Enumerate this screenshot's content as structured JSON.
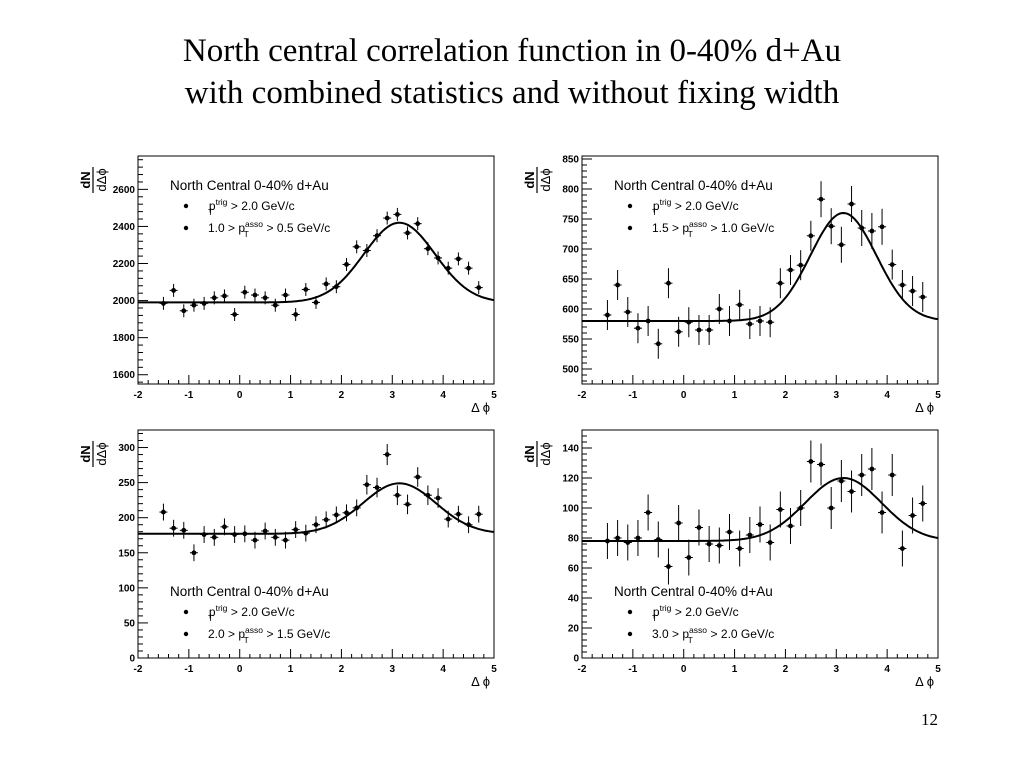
{
  "slide": {
    "title_line1": "North central correlation function in 0-40% d+Au",
    "title_line2": "with combined statistics and without fixing width",
    "page_number": "12"
  },
  "chart_data": [
    {
      "type": "scatter",
      "title": "North Central 0-40% d+Au",
      "legend": [
        "p_T^trig > 2.0 GeV/c",
        "1.0 > p_T^asso > 0.5 GeV/c"
      ],
      "legend_placement": "top-left",
      "xlabel": "Δ ϕ",
      "ylabel": "dN/dΔϕ",
      "xlim": [
        -2,
        5
      ],
      "ylim": [
        1550,
        2780
      ],
      "yticks": [
        1600,
        1800,
        2000,
        2200,
        2400,
        2600
      ],
      "xticks": [
        -2,
        -1,
        0,
        1,
        2,
        3,
        4,
        5
      ],
      "grid": false,
      "x": [
        -1.5,
        -1.3,
        -1.1,
        -0.9,
        -0.7,
        -0.5,
        -0.3,
        -0.1,
        0.1,
        0.3,
        0.5,
        0.7,
        0.9,
        1.1,
        1.3,
        1.5,
        1.7,
        1.9,
        2.1,
        2.3,
        2.5,
        2.7,
        2.9,
        3.1,
        3.3,
        3.5,
        3.7,
        3.9,
        4.1,
        4.3,
        4.5,
        4.7
      ],
      "y": [
        1985,
        2055,
        1945,
        1975,
        1985,
        2015,
        2025,
        1925,
        2045,
        2030,
        2015,
        1975,
        2030,
        1925,
        2060,
        1990,
        2090,
        2075,
        2195,
        2290,
        2270,
        2350,
        2445,
        2465,
        2365,
        2415,
        2280,
        2230,
        2175,
        2225,
        2175,
        2070
      ],
      "yerr": [
        35,
        35,
        35,
        35,
        35,
        35,
        35,
        35,
        35,
        35,
        35,
        35,
        35,
        35,
        35,
        35,
        35,
        35,
        35,
        35,
        35,
        35,
        35,
        35,
        35,
        35,
        35,
        35,
        35,
        35,
        35,
        35
      ],
      "fit": {
        "baseline": 1990,
        "amplitude": 430,
        "center": 3.14,
        "sigma": 0.7
      }
    },
    {
      "type": "scatter",
      "title": "North Central 0-40% d+Au",
      "legend": [
        "p_T^trig > 2.0 GeV/c",
        "1.5 > p_T^asso > 1.0 GeV/c"
      ],
      "legend_placement": "top-left",
      "xlabel": "Δ ϕ",
      "ylabel": "dN/dΔϕ",
      "xlim": [
        -2,
        5
      ],
      "ylim": [
        475,
        855
      ],
      "yticks": [
        500,
        550,
        600,
        650,
        700,
        750,
        800,
        850
      ],
      "xticks": [
        -2,
        -1,
        0,
        1,
        2,
        3,
        4,
        5
      ],
      "grid": false,
      "x": [
        -1.5,
        -1.3,
        -1.1,
        -0.9,
        -0.7,
        -0.5,
        -0.3,
        -0.1,
        0.1,
        0.3,
        0.5,
        0.7,
        0.9,
        1.1,
        1.3,
        1.5,
        1.7,
        1.9,
        2.1,
        2.3,
        2.5,
        2.7,
        2.9,
        3.1,
        3.3,
        3.5,
        3.7,
        3.9,
        4.1,
        4.3,
        4.5,
        4.7
      ],
      "y": [
        590,
        640,
        595,
        568,
        580,
        542,
        643,
        562,
        578,
        565,
        565,
        600,
        580,
        607,
        575,
        580,
        578,
        643,
        665,
        673,
        722,
        783,
        738,
        707,
        775,
        735,
        730,
        737,
        674,
        640,
        630,
        620
      ],
      "yerr": [
        25,
        25,
        25,
        25,
        25,
        25,
        25,
        25,
        25,
        25,
        25,
        25,
        25,
        25,
        25,
        25,
        25,
        25,
        25,
        25,
        25,
        30,
        30,
        30,
        30,
        30,
        30,
        30,
        25,
        25,
        25,
        25
      ],
      "fit": {
        "baseline": 580,
        "amplitude": 180,
        "center": 3.14,
        "sigma": 0.65
      }
    },
    {
      "type": "scatter",
      "title": "North Central 0-40% d+Au",
      "legend": [
        "p_T^trig > 2.0 GeV/c",
        "2.0 > p_T^asso > 1.5 GeV/c"
      ],
      "legend_placement": "bottom-left",
      "xlabel": "Δ ϕ",
      "ylabel": "dN/dΔϕ",
      "xlim": [
        -2,
        5
      ],
      "ylim": [
        0,
        325
      ],
      "yticks": [
        0,
        50,
        100,
        150,
        200,
        250,
        300
      ],
      "xticks": [
        -2,
        -1,
        0,
        1,
        2,
        3,
        4,
        5
      ],
      "grid": false,
      "x": [
        -1.5,
        -1.3,
        -1.1,
        -0.9,
        -0.7,
        -0.5,
        -0.3,
        -0.1,
        0.1,
        0.3,
        0.5,
        0.7,
        0.9,
        1.1,
        1.3,
        1.5,
        1.7,
        1.9,
        2.1,
        2.3,
        2.5,
        2.7,
        2.9,
        3.1,
        3.3,
        3.5,
        3.7,
        3.9,
        4.1,
        4.3,
        4.5,
        4.7
      ],
      "y": [
        208,
        185,
        182,
        150,
        176,
        172,
        187,
        176,
        177,
        168,
        181,
        172,
        168,
        183,
        178,
        190,
        197,
        204,
        207,
        214,
        247,
        243,
        290,
        232,
        219,
        258,
        232,
        228,
        198,
        205,
        190,
        205
      ],
      "yerr": [
        12,
        12,
        12,
        12,
        12,
        12,
        12,
        12,
        12,
        12,
        12,
        12,
        12,
        12,
        12,
        12,
        12,
        12,
        12,
        12,
        14,
        14,
        15,
        14,
        14,
        14,
        14,
        14,
        12,
        12,
        12,
        12
      ],
      "fit": {
        "baseline": 177,
        "amplitude": 72,
        "center": 3.14,
        "sigma": 0.72
      }
    },
    {
      "type": "scatter",
      "title": "North Central 0-40% d+Au",
      "legend": [
        "p_T^trig > 2.0 GeV/c",
        "3.0 > p_T^asso > 2.0 GeV/c"
      ],
      "legend_placement": "bottom-left",
      "xlabel": "Δ ϕ",
      "ylabel": "dN/dΔϕ",
      "xlim": [
        -2,
        5
      ],
      "ylim": [
        0,
        152
      ],
      "yticks": [
        0,
        20,
        40,
        60,
        80,
        100,
        120,
        140
      ],
      "xticks": [
        -2,
        -1,
        0,
        1,
        2,
        3,
        4,
        5
      ],
      "grid": false,
      "x": [
        -1.5,
        -1.3,
        -1.1,
        -0.9,
        -0.7,
        -0.5,
        -0.3,
        -0.1,
        0.1,
        0.3,
        0.5,
        0.7,
        0.9,
        1.1,
        1.3,
        1.5,
        1.7,
        1.9,
        2.1,
        2.3,
        2.5,
        2.7,
        2.9,
        3.1,
        3.3,
        3.5,
        3.7,
        3.9,
        4.1,
        4.3,
        4.5,
        4.7
      ],
      "y": [
        78,
        80,
        77,
        80,
        97,
        79,
        61,
        90,
        67,
        87,
        76,
        75,
        84,
        73,
        82,
        89,
        77,
        99,
        88,
        100,
        131,
        129,
        100,
        118,
        111,
        122,
        126,
        97,
        122,
        73,
        95,
        103
      ],
      "yerr": [
        12,
        12,
        12,
        12,
        12,
        12,
        12,
        12,
        12,
        12,
        12,
        12,
        12,
        12,
        12,
        12,
        12,
        12,
        12,
        12,
        14,
        14,
        14,
        14,
        14,
        14,
        14,
        14,
        14,
        12,
        12,
        12
      ],
      "fit": {
        "baseline": 78,
        "amplitude": 42,
        "center": 3.14,
        "sigma": 0.75
      }
    }
  ]
}
